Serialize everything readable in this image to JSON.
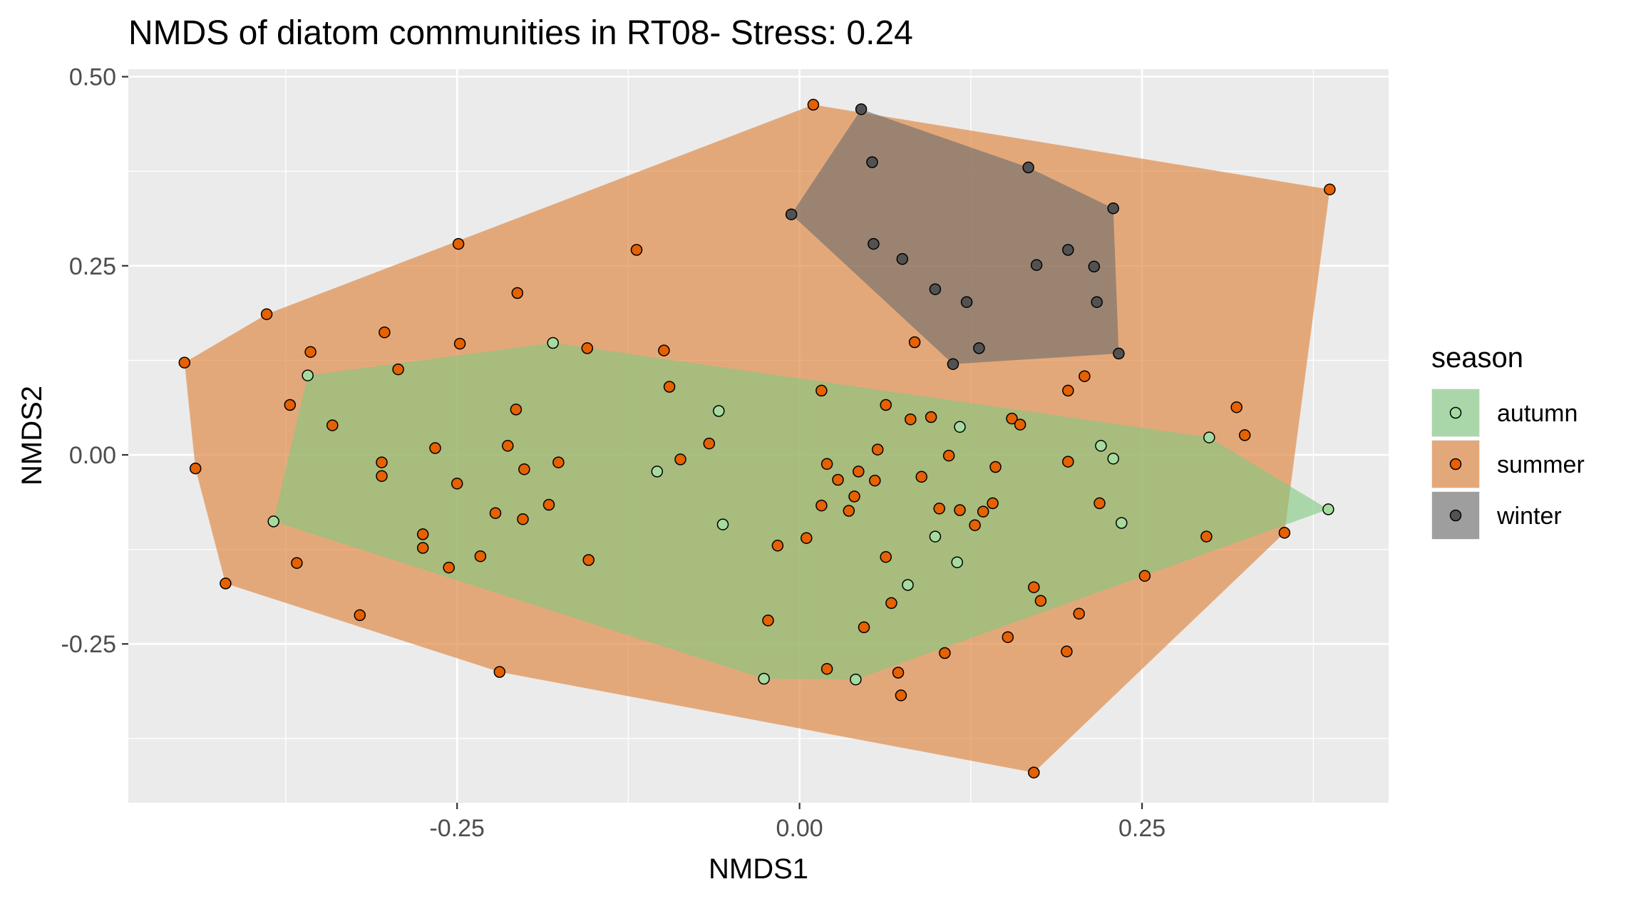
{
  "chart_data": {
    "type": "scatter",
    "title": "NMDS of diatom communities in RT08- Stress: 0.24",
    "xlabel": "NMDS1",
    "ylabel": "NMDS2",
    "xlim": [
      -0.49,
      0.43
    ],
    "ylim": [
      -0.46,
      0.51
    ],
    "x_ticks": [
      -0.25,
      0.0,
      0.25
    ],
    "x_tick_labels": [
      "-0.25",
      "0.00",
      "0.25"
    ],
    "y_ticks": [
      -0.25,
      0.0,
      0.25,
      0.5
    ],
    "y_tick_labels": [
      "-0.25",
      "0.00",
      "0.25",
      "0.50"
    ],
    "grid": true,
    "legend": {
      "title": "season",
      "position": "right",
      "entries": [
        "autumn",
        "summer",
        "winter"
      ]
    },
    "series": [
      {
        "name": "autumn",
        "point_color": "#a6dba0",
        "hull_color": "#7fc97f",
        "points": [
          [
            -0.18,
            0.148
          ],
          [
            -0.359,
            0.105
          ],
          [
            -0.384,
            -0.088
          ],
          [
            -0.104,
            -0.022
          ],
          [
            -0.059,
            0.058
          ],
          [
            -0.056,
            -0.092
          ],
          [
            0.117,
            0.037
          ],
          [
            0.099,
            -0.108
          ],
          [
            0.115,
            -0.142
          ],
          [
            0.079,
            -0.172
          ],
          [
            0.041,
            -0.297
          ],
          [
            -0.026,
            -0.296
          ],
          [
            0.22,
            0.012
          ],
          [
            0.229,
            -0.005
          ],
          [
            0.235,
            -0.09
          ],
          [
            0.299,
            0.023
          ],
          [
            0.386,
            -0.072
          ]
        ]
      },
      {
        "name": "summer",
        "point_color": "#e66101",
        "hull_color": "#e08b4a",
        "points": [
          [
            0.01,
            0.463
          ],
          [
            0.387,
            0.351
          ],
          [
            -0.449,
            0.122
          ],
          [
            -0.441,
            -0.018
          ],
          [
            -0.419,
            -0.17
          ],
          [
            -0.389,
            0.186
          ],
          [
            -0.249,
            0.279
          ],
          [
            -0.119,
            0.271
          ],
          [
            -0.206,
            0.214
          ],
          [
            -0.303,
            0.162
          ],
          [
            -0.357,
            0.136
          ],
          [
            -0.248,
            0.147
          ],
          [
            -0.293,
            0.113
          ],
          [
            -0.155,
            0.141
          ],
          [
            -0.099,
            0.138
          ],
          [
            -0.372,
            0.066
          ],
          [
            -0.341,
            0.039
          ],
          [
            -0.207,
            0.06
          ],
          [
            -0.095,
            0.09
          ],
          [
            -0.266,
            0.009
          ],
          [
            -0.213,
            0.012
          ],
          [
            -0.305,
            -0.01
          ],
          [
            -0.305,
            -0.028
          ],
          [
            -0.176,
            -0.01
          ],
          [
            -0.201,
            -0.019
          ],
          [
            -0.25,
            -0.038
          ],
          [
            -0.087,
            -0.006
          ],
          [
            -0.066,
            0.015
          ],
          [
            -0.367,
            -0.143
          ],
          [
            -0.275,
            -0.105
          ],
          [
            -0.275,
            -0.123
          ],
          [
            -0.222,
            -0.077
          ],
          [
            -0.202,
            -0.085
          ],
          [
            -0.183,
            -0.066
          ],
          [
            -0.256,
            -0.149
          ],
          [
            -0.233,
            -0.134
          ],
          [
            -0.154,
            -0.139
          ],
          [
            -0.321,
            -0.212
          ],
          [
            -0.219,
            -0.287
          ],
          [
            0.016,
            0.085
          ],
          [
            0.084,
            0.149
          ],
          [
            0.063,
            0.066
          ],
          [
            0.081,
            0.047
          ],
          [
            0.096,
            0.05
          ],
          [
            0.155,
            0.048
          ],
          [
            0.161,
            0.04
          ],
          [
            0.196,
            0.085
          ],
          [
            0.208,
            0.104
          ],
          [
            0.02,
            -0.012
          ],
          [
            0.028,
            -0.033
          ],
          [
            0.043,
            -0.022
          ],
          [
            0.055,
            -0.034
          ],
          [
            0.057,
            0.007
          ],
          [
            0.089,
            -0.029
          ],
          [
            0.109,
            -0.001
          ],
          [
            0.143,
            -0.016
          ],
          [
            0.196,
            -0.009
          ],
          [
            0.016,
            -0.067
          ],
          [
            0.04,
            -0.055
          ],
          [
            0.036,
            -0.074
          ],
          [
            0.102,
            -0.071
          ],
          [
            0.117,
            -0.073
          ],
          [
            0.134,
            -0.075
          ],
          [
            0.141,
            -0.064
          ],
          [
            0.128,
            -0.093
          ],
          [
            0.219,
            -0.064
          ],
          [
            0.005,
            -0.11
          ],
          [
            -0.016,
            -0.12
          ],
          [
            0.063,
            -0.135
          ],
          [
            0.067,
            -0.196
          ],
          [
            0.047,
            -0.228
          ],
          [
            -0.023,
            -0.219
          ],
          [
            0.02,
            -0.283
          ],
          [
            0.072,
            -0.288
          ],
          [
            0.074,
            -0.318
          ],
          [
            0.106,
            -0.262
          ],
          [
            0.152,
            -0.241
          ],
          [
            0.171,
            -0.175
          ],
          [
            0.176,
            -0.193
          ],
          [
            0.204,
            -0.21
          ],
          [
            0.195,
            -0.26
          ],
          [
            0.252,
            -0.16
          ],
          [
            0.297,
            -0.108
          ],
          [
            0.319,
            0.063
          ],
          [
            0.325,
            0.026
          ],
          [
            0.354,
            -0.103
          ],
          [
            0.171,
            -0.42
          ]
        ]
      },
      {
        "name": "winter",
        "point_color": "#525252",
        "hull_color": "#6b6b6b",
        "points": [
          [
            0.045,
            0.457
          ],
          [
            -0.006,
            0.318
          ],
          [
            0.053,
            0.387
          ],
          [
            0.167,
            0.38
          ],
          [
            0.229,
            0.326
          ],
          [
            0.054,
            0.279
          ],
          [
            0.075,
            0.259
          ],
          [
            0.196,
            0.271
          ],
          [
            0.173,
            0.251
          ],
          [
            0.215,
            0.249
          ],
          [
            0.099,
            0.219
          ],
          [
            0.122,
            0.202
          ],
          [
            0.217,
            0.202
          ],
          [
            0.131,
            0.141
          ],
          [
            0.112,
            0.12
          ],
          [
            0.233,
            0.134
          ]
        ]
      }
    ]
  }
}
